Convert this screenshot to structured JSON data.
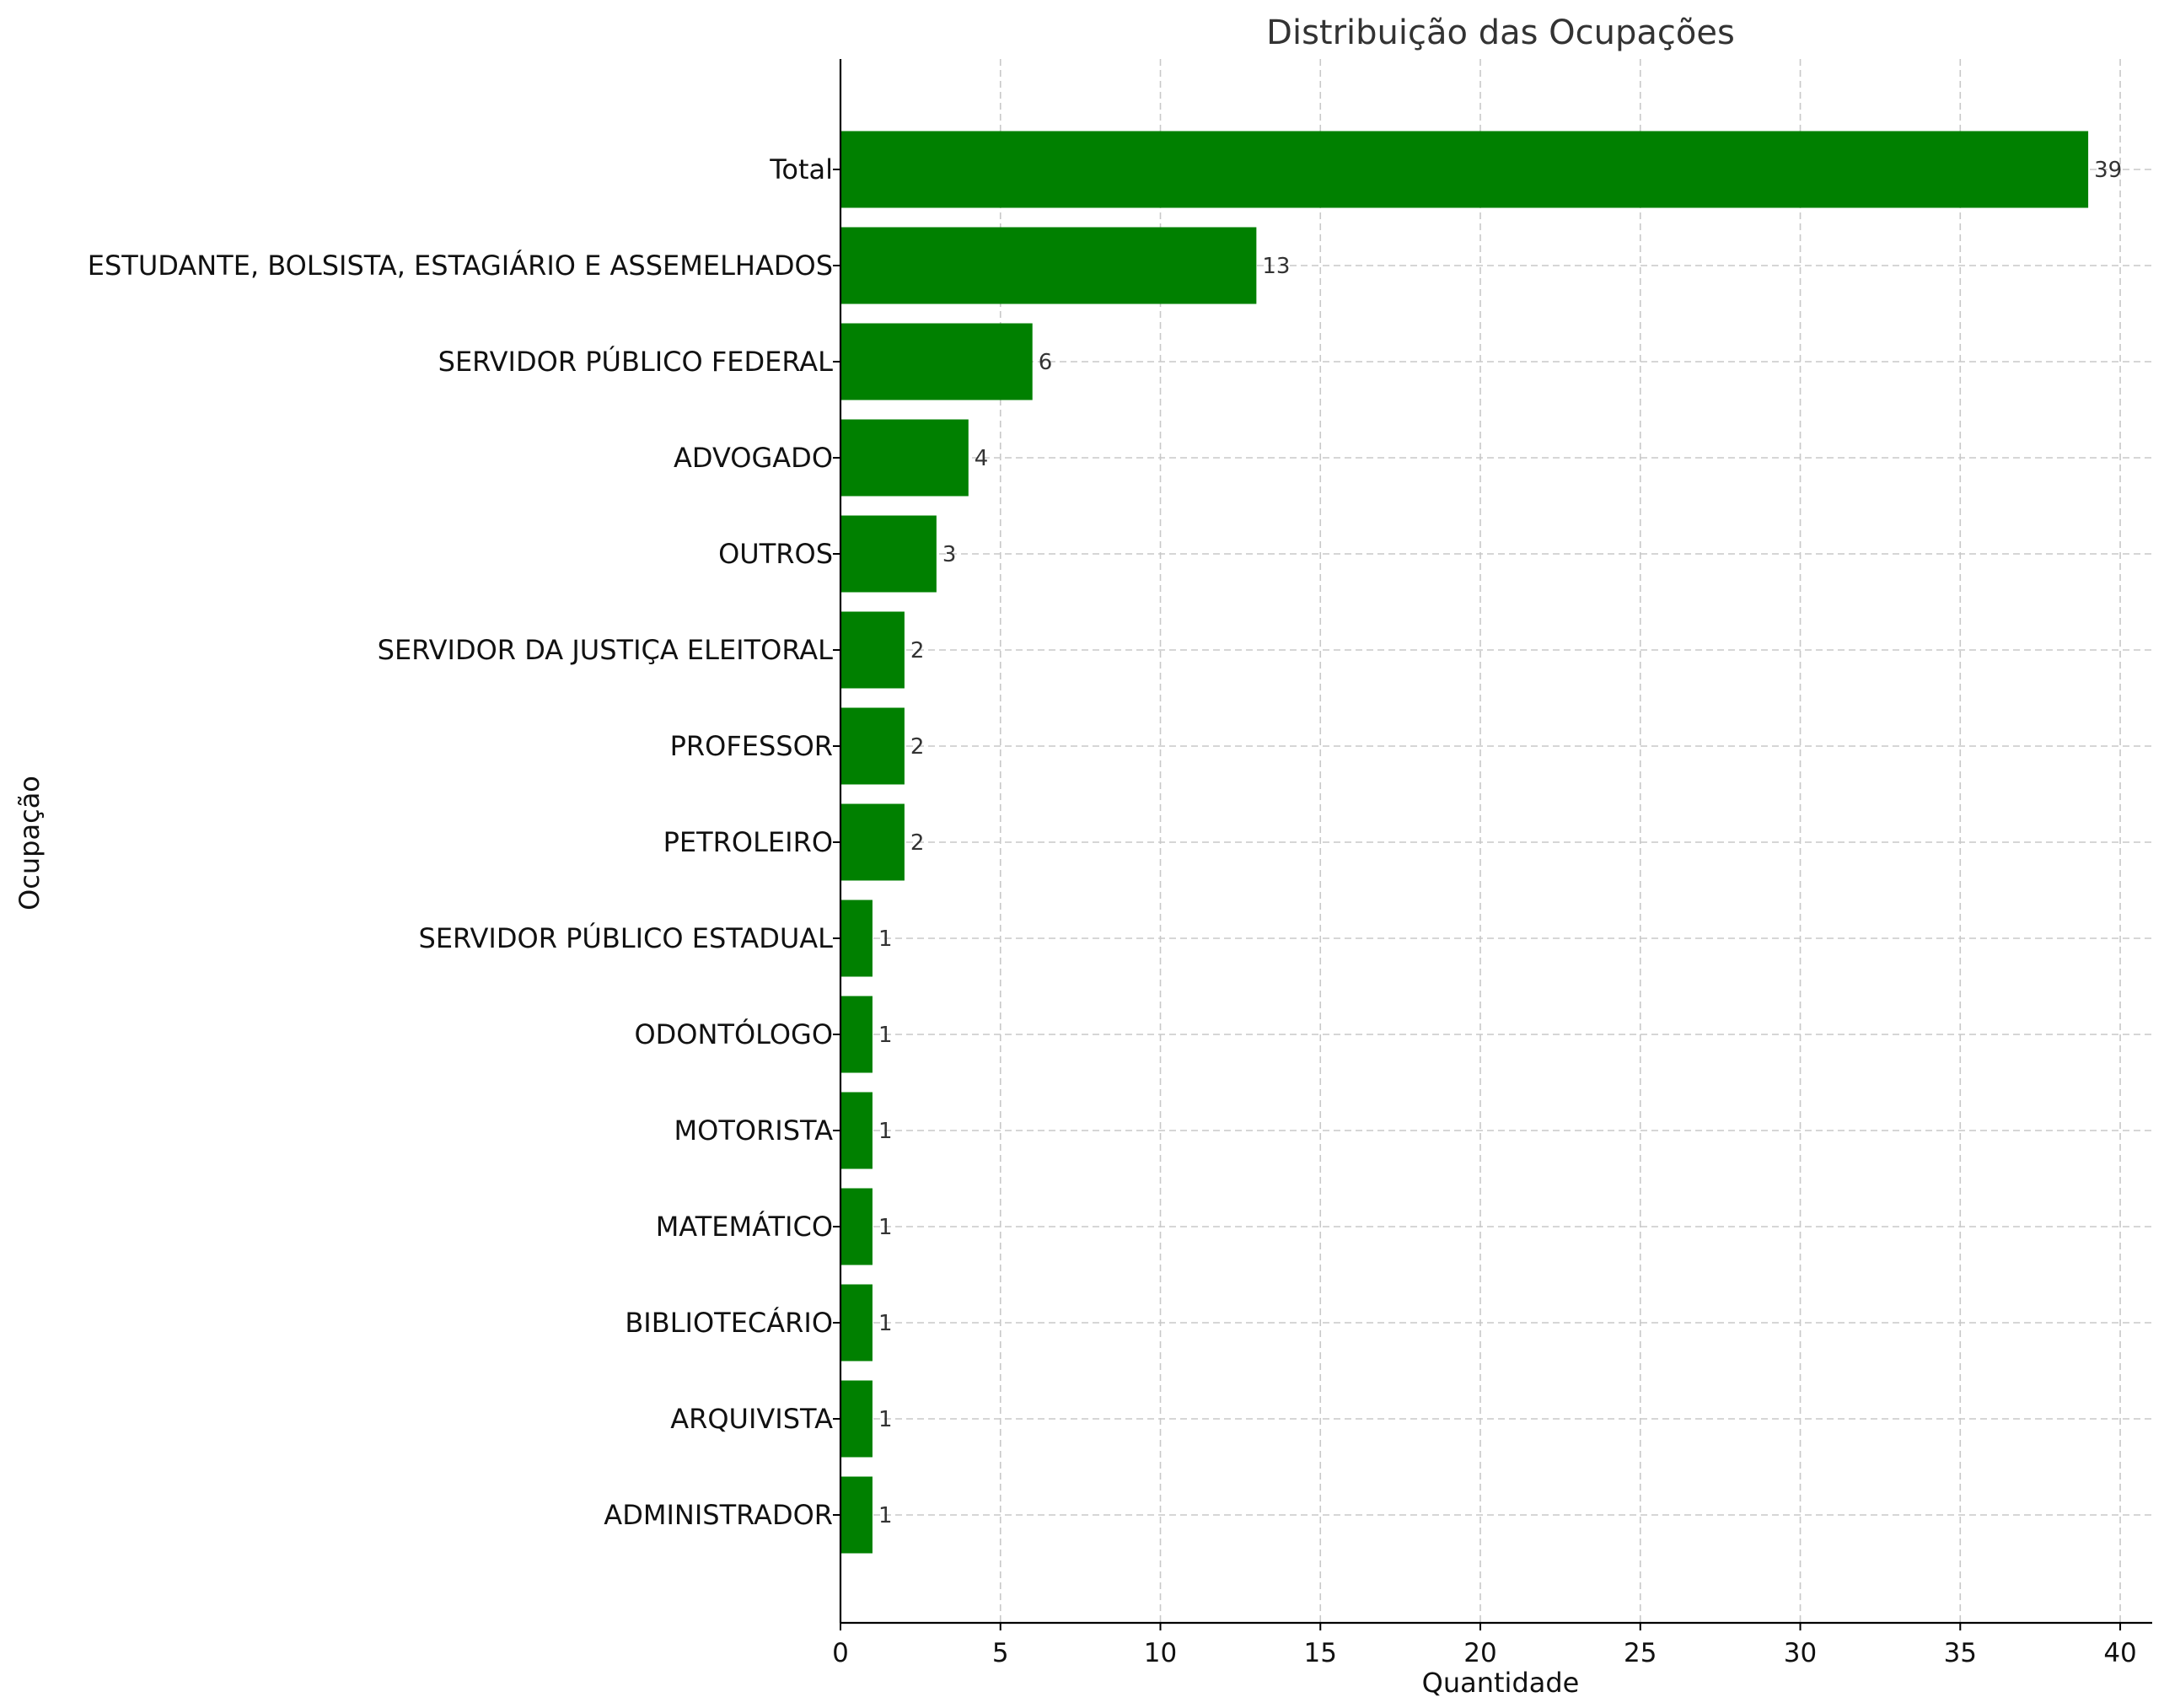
{
  "chart_data": {
    "type": "bar",
    "orientation": "horizontal",
    "title": "Distribuição das Ocupações",
    "xlabel": "Quantidade",
    "ylabel": "Ocupação",
    "categories": [
      "Total",
      "ESTUDANTE, BOLSISTA, ESTAGIÁRIO E ASSEMELHADOS",
      "SERVIDOR PÚBLICO FEDERAL",
      "ADVOGADO",
      "OUTROS",
      "SERVIDOR DA JUSTIÇA ELEITORAL",
      "PROFESSOR",
      "PETROLEIRO",
      "SERVIDOR PÚBLICO ESTADUAL",
      "ODONTÓLOGO",
      "MOTORISTA",
      "MATEMÁTICO",
      "BIBLIOTECÁRIO",
      "ARQUIVISTA",
      "ADMINISTRADOR"
    ],
    "values": [
      39,
      13,
      6,
      4,
      3,
      2,
      2,
      2,
      1,
      1,
      1,
      1,
      1,
      1,
      1
    ],
    "xlim": [
      0,
      41
    ],
    "xticks": [
      0,
      5,
      10,
      15,
      20,
      25,
      30,
      35,
      40
    ],
    "grid": true,
    "bar_color": "#008000",
    "data_labels": true
  }
}
